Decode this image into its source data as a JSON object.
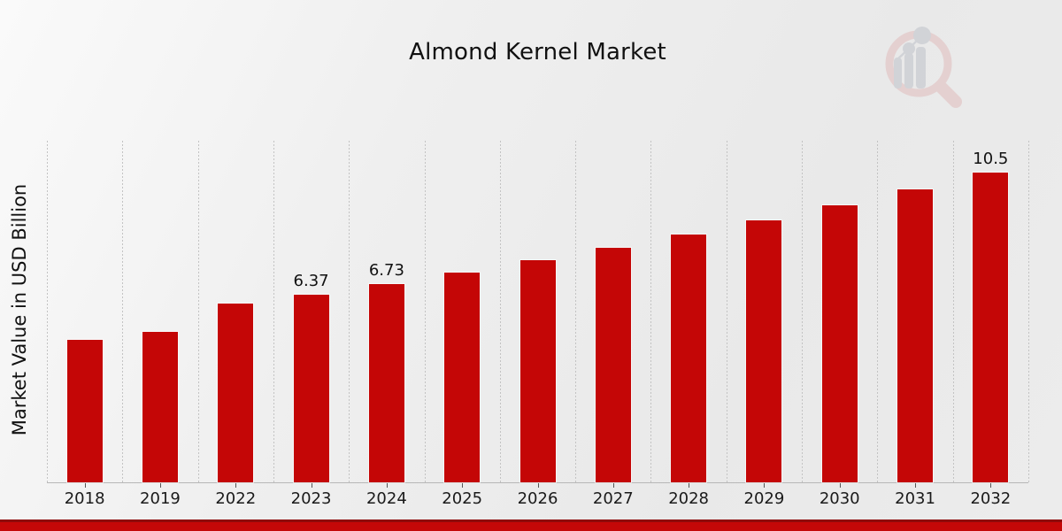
{
  "page": {
    "title": "Almond Kernel Market"
  },
  "logo": {
    "name": "market-research-future-watermark",
    "ring_color": "#e0bcbc",
    "bars_color": "#bfc2ca"
  },
  "colors": {
    "bar": "#c40606",
    "banner_top": "#8f0b0b",
    "banner": "#c40808",
    "gridline": "#c3c3c3",
    "background": "#ececec",
    "text": "#111111"
  },
  "chart_data": {
    "type": "bar",
    "title": "Almond Kernel Market",
    "xlabel": "",
    "ylabel": "Market Value in USD Billion",
    "categories": [
      "2018",
      "2019",
      "2022",
      "2023",
      "2024",
      "2025",
      "2026",
      "2027",
      "2028",
      "2029",
      "2030",
      "2031",
      "2032"
    ],
    "values": [
      4.83,
      5.1,
      6.06,
      6.37,
      6.73,
      7.11,
      7.52,
      7.95,
      8.4,
      8.88,
      9.39,
      9.93,
      10.5
    ],
    "shown_value_labels": {
      "2023": "6.37",
      "2024": "6.73",
      "2032": "10.5"
    },
    "ylim": [
      0,
      11.6
    ],
    "grid": "vertical dotted gridlines at category boundaries",
    "legend": "none",
    "bar_color": "#c40606"
  }
}
